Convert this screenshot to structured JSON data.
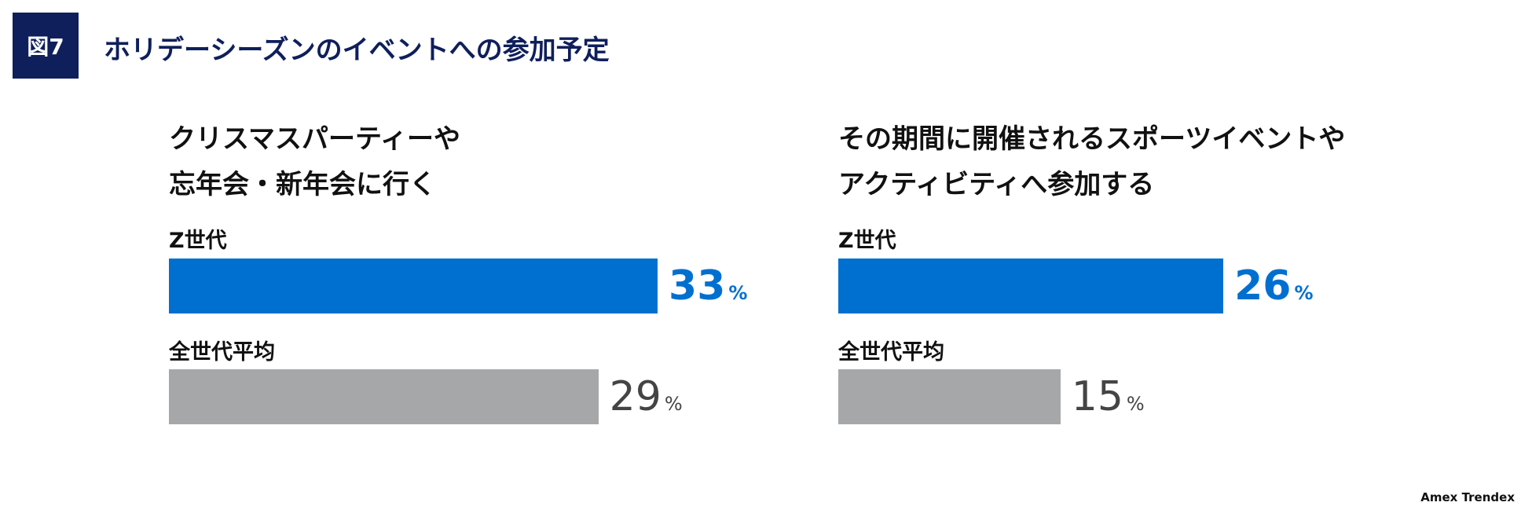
{
  "figure": {
    "badge": "図7",
    "title": "ホリデーシーズンのイベントへの参加予定"
  },
  "source": "Amex Trendex",
  "colors": {
    "gen_z": "#0070D0",
    "average": "#A6A7A9",
    "badge": "#0F1F5C"
  },
  "chart_data": [
    {
      "type": "bar",
      "orientation": "horizontal",
      "title_lines": [
        "クリスマスパーティーや",
        "忘年会・新年会に行く"
      ],
      "categories": [
        "Z世代",
        "全世代平均"
      ],
      "values": [
        33,
        29
      ],
      "unit": "%",
      "grid": false
    },
    {
      "type": "bar",
      "orientation": "horizontal",
      "title_lines": [
        "その期間に開催されるスポーツイベントや",
        "アクティビティへ参加する"
      ],
      "categories": [
        "Z世代",
        "全世代平均"
      ],
      "values": [
        26,
        15
      ],
      "unit": "%",
      "grid": false
    }
  ]
}
